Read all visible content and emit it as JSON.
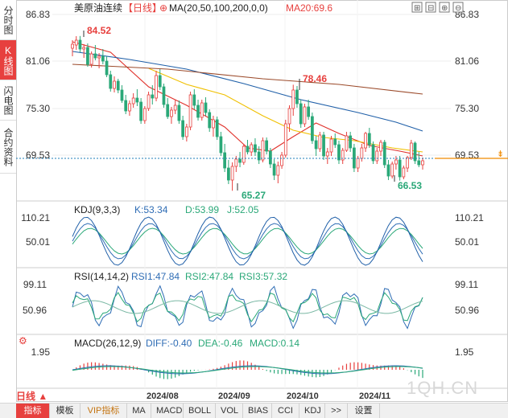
{
  "side_tabs": [
    {
      "label": "分时图",
      "active": false
    },
    {
      "label": "K线图",
      "active": true
    },
    {
      "label": "闪电图",
      "active": false
    },
    {
      "label": "合约资料",
      "active": false
    }
  ],
  "header": {
    "title": "美原油连续",
    "period": "【日线】",
    "ma_label": "MA(20,50,100,200,0,0)",
    "ma20_label": "MA20:69.6"
  },
  "price_axis": {
    "ticks": [
      "86.83",
      "81.06",
      "75.30",
      "69.53"
    ],
    "right_ticks": [
      "86.83",
      "81.06",
      "75.30",
      "69.53"
    ],
    "current": "69.53"
  },
  "annotations": {
    "high1": "84.52",
    "high2": "78.46",
    "low1": "65.27",
    "low2": "66.53"
  },
  "kdj": {
    "label": "KDJ(9,3,3)",
    "k": "K:53.34",
    "d": "D:53.99",
    "j": "J:52.05",
    "ticks": [
      "110.21",
      "50.01"
    ]
  },
  "rsi": {
    "label": "RSI(14,14,2)",
    "r1": "RSI1:47.84",
    "r2": "RSI2:47.84",
    "r3": "RSI3:57.32",
    "ticks": [
      "99.11",
      "50.96"
    ]
  },
  "macd": {
    "label": "MACD(26,12,9)",
    "diff": "DIFF:-0.40",
    "dea": "DEA:-0.46",
    "macd": "MACD:0.14",
    "ticks": [
      "1.95"
    ]
  },
  "x_axis": {
    "labels": [
      "2024/08",
      "2024/09",
      "2024/10",
      "2024/11"
    ]
  },
  "period_button": "日线 ▲",
  "bottom_tabs": [
    "指标",
    "模板",
    "VIP指标",
    "MA",
    "MACD",
    "BOLL",
    "VOL",
    "BIAS",
    "CCI",
    "KDJ",
    ">>",
    "设置"
  ],
  "watermark": "1QH.CN",
  "colors": {
    "up": "#e7403e",
    "down": "#2aa878",
    "ma20": "#e0302a",
    "ma50": "#f0c000",
    "ma100": "#1f5fa8",
    "ma200": "#9b4a2a",
    "accent": "#e7403e"
  },
  "chart_data": {
    "type": "candlestick",
    "ylim": [
      65,
      87
    ],
    "candles": [
      [
        83.0,
        84.0,
        82.0,
        83.5
      ],
      [
        83.4,
        84.5,
        82.8,
        84.0
      ],
      [
        84.0,
        84.52,
        82.5,
        82.9
      ],
      [
        82.9,
        83.5,
        81.8,
        83.1
      ],
      [
        83.1,
        83.6,
        80.7,
        81.0
      ],
      [
        81.0,
        82.6,
        80.6,
        82.3
      ],
      [
        82.3,
        83.4,
        81.5,
        81.8
      ],
      [
        81.8,
        82.4,
        80.5,
        82.0
      ],
      [
        82.0,
        82.9,
        81.0,
        81.4
      ],
      [
        81.4,
        82.0,
        79.4,
        79.7
      ],
      [
        79.7,
        80.2,
        77.6,
        78.0
      ],
      [
        78.0,
        79.5,
        77.5,
        78.9
      ],
      [
        78.9,
        79.2,
        77.4,
        77.8
      ],
      [
        77.8,
        78.4,
        76.2,
        76.5
      ],
      [
        76.5,
        77.2,
        74.8,
        75.2
      ],
      [
        75.2,
        76.5,
        74.6,
        76.1
      ],
      [
        76.1,
        77.4,
        75.6,
        76.8
      ],
      [
        76.8,
        77.9,
        75.8,
        76.3
      ],
      [
        76.3,
        76.8,
        73.6,
        74.0
      ],
      [
        74.0,
        75.8,
        73.6,
        75.5
      ],
      [
        75.5,
        77.6,
        75.2,
        77.2
      ],
      [
        77.2,
        78.4,
        76.0,
        76.8
      ],
      [
        76.8,
        80.2,
        76.4,
        79.6
      ],
      [
        79.6,
        80.4,
        77.8,
        78.2
      ],
      [
        78.2,
        78.6,
        75.6,
        76.0
      ],
      [
        76.0,
        76.8,
        74.2,
        74.5
      ],
      [
        74.5,
        75.7,
        73.6,
        75.3
      ],
      [
        75.3,
        76.6,
        74.8,
        75.9
      ],
      [
        75.9,
        76.5,
        73.6,
        74.0
      ],
      [
        74.0,
        74.6,
        71.6,
        72.0
      ],
      [
        72.0,
        73.6,
        71.4,
        73.2
      ],
      [
        73.2,
        77.6,
        72.8,
        77.2
      ],
      [
        77.2,
        77.9,
        75.4,
        75.9
      ],
      [
        75.9,
        76.6,
        74.0,
        74.4
      ],
      [
        74.4,
        76.6,
        74.0,
        76.2
      ],
      [
        76.2,
        76.9,
        74.6,
        75.0
      ],
      [
        75.0,
        75.4,
        72.6,
        73.1
      ],
      [
        73.1,
        74.6,
        72.0,
        74.1
      ],
      [
        74.1,
        74.5,
        71.6,
        72.0
      ],
      [
        72.0,
        72.6,
        69.6,
        70.0
      ],
      [
        70.0,
        71.1,
        67.6,
        68.1
      ],
      [
        68.1,
        69.1,
        66.1,
        66.6
      ],
      [
        66.6,
        68.8,
        65.27,
        68.3
      ],
      [
        68.3,
        69.6,
        67.6,
        69.2
      ],
      [
        69.2,
        70.1,
        68.2,
        68.8
      ],
      [
        68.8,
        71.1,
        68.5,
        70.8
      ],
      [
        70.8,
        71.6,
        69.8,
        70.1
      ],
      [
        70.1,
        71.3,
        69.6,
        71.0
      ],
      [
        71.0,
        71.8,
        69.6,
        70.1
      ],
      [
        70.1,
        70.8,
        68.6,
        69.1
      ],
      [
        69.1,
        71.9,
        68.8,
        71.5
      ],
      [
        71.5,
        71.9,
        69.8,
        70.2
      ],
      [
        70.2,
        70.6,
        68.1,
        68.6
      ],
      [
        68.6,
        69.2,
        66.6,
        67.2
      ],
      [
        67.2,
        68.9,
        66.2,
        68.4
      ],
      [
        68.4,
        70.1,
        68.0,
        69.7
      ],
      [
        69.7,
        74.1,
        69.4,
        73.6
      ],
      [
        73.6,
        75.9,
        72.6,
        75.5
      ],
      [
        75.5,
        78.46,
        74.6,
        77.8
      ],
      [
        77.8,
        78.3,
        75.6,
        76.1
      ],
      [
        76.1,
        76.6,
        73.1,
        73.6
      ],
      [
        73.6,
        76.1,
        73.2,
        75.7
      ],
      [
        75.7,
        76.6,
        74.1,
        74.5
      ],
      [
        74.5,
        75.0,
        71.1,
        71.5
      ],
      [
        71.5,
        72.1,
        69.6,
        70.5
      ],
      [
        70.5,
        72.6,
        70.1,
        72.2
      ],
      [
        72.2,
        72.6,
        69.1,
        69.6
      ],
      [
        69.6,
        70.6,
        68.6,
        70.1
      ],
      [
        70.1,
        72.1,
        69.6,
        71.7
      ],
      [
        71.7,
        72.4,
        70.6,
        71.0
      ],
      [
        71.0,
        71.5,
        68.6,
        69.1
      ],
      [
        69.1,
        70.6,
        68.6,
        70.3
      ],
      [
        70.3,
        72.6,
        70.1,
        72.1
      ],
      [
        72.1,
        72.6,
        70.1,
        70.6
      ],
      [
        70.6,
        71.1,
        67.6,
        68.1
      ],
      [
        68.1,
        69.6,
        67.6,
        69.3
      ],
      [
        69.3,
        71.1,
        68.9,
        70.6
      ],
      [
        70.6,
        72.6,
        70.1,
        72.4
      ],
      [
        72.4,
        73.1,
        70.6,
        71.0
      ],
      [
        71.0,
        71.4,
        68.6,
        69.0
      ],
      [
        69.0,
        70.6,
        68.6,
        70.2
      ],
      [
        70.2,
        71.6,
        69.6,
        71.3
      ],
      [
        71.3,
        71.6,
        68.1,
        68.5
      ],
      [
        68.5,
        69.1,
        66.6,
        67.1
      ],
      [
        67.1,
        68.9,
        66.8,
        68.6
      ],
      [
        68.6,
        69.6,
        67.9,
        69.1
      ],
      [
        69.1,
        69.6,
        66.53,
        67.0
      ],
      [
        67.0,
        68.4,
        66.7,
        68.1
      ],
      [
        68.1,
        69.6,
        67.6,
        69.4
      ],
      [
        69.4,
        71.6,
        69.1,
        71.2
      ],
      [
        71.2,
        71.4,
        68.6,
        69.0
      ],
      [
        69.0,
        70.1,
        68.2,
        68.5
      ],
      [
        68.5,
        69.4,
        67.9,
        69.0
      ]
    ],
    "ma": {
      "MA20": [
        [
          0,
          83.8
        ],
        [
          10,
          82.5
        ],
        [
          20,
          78.2
        ],
        [
          30,
          75.9
        ],
        [
          40,
          73.2
        ],
        [
          46,
          70.6
        ],
        [
          52,
          70.2
        ],
        [
          58,
          72.0
        ],
        [
          64,
          73.7
        ],
        [
          70,
          72.4
        ],
        [
          78,
          70.9
        ],
        [
          86,
          70.2
        ],
        [
          92,
          69.6
        ]
      ],
      "MA50": [
        [
          20,
          80.5
        ],
        [
          30,
          78.5
        ],
        [
          40,
          77.2
        ],
        [
          50,
          74.6
        ],
        [
          58,
          72.8
        ],
        [
          66,
          71.9
        ],
        [
          74,
          71.5
        ],
        [
          84,
          70.6
        ],
        [
          92,
          70.1
        ]
      ],
      "MA100": [
        [
          0,
          82.6
        ],
        [
          15,
          81.6
        ],
        [
          30,
          80.4
        ],
        [
          45,
          78.6
        ],
        [
          60,
          76.6
        ],
        [
          75,
          75.0
        ],
        [
          85,
          73.8
        ],
        [
          92,
          72.7
        ]
      ],
      "MA200": [
        [
          0,
          81.0
        ],
        [
          25,
          80.4
        ],
        [
          50,
          79.2
        ],
        [
          70,
          78.5
        ],
        [
          92,
          77.3
        ]
      ]
    },
    "xlabels": [
      "2024/08",
      "2024/09",
      "2024/10",
      "2024/11"
    ]
  }
}
